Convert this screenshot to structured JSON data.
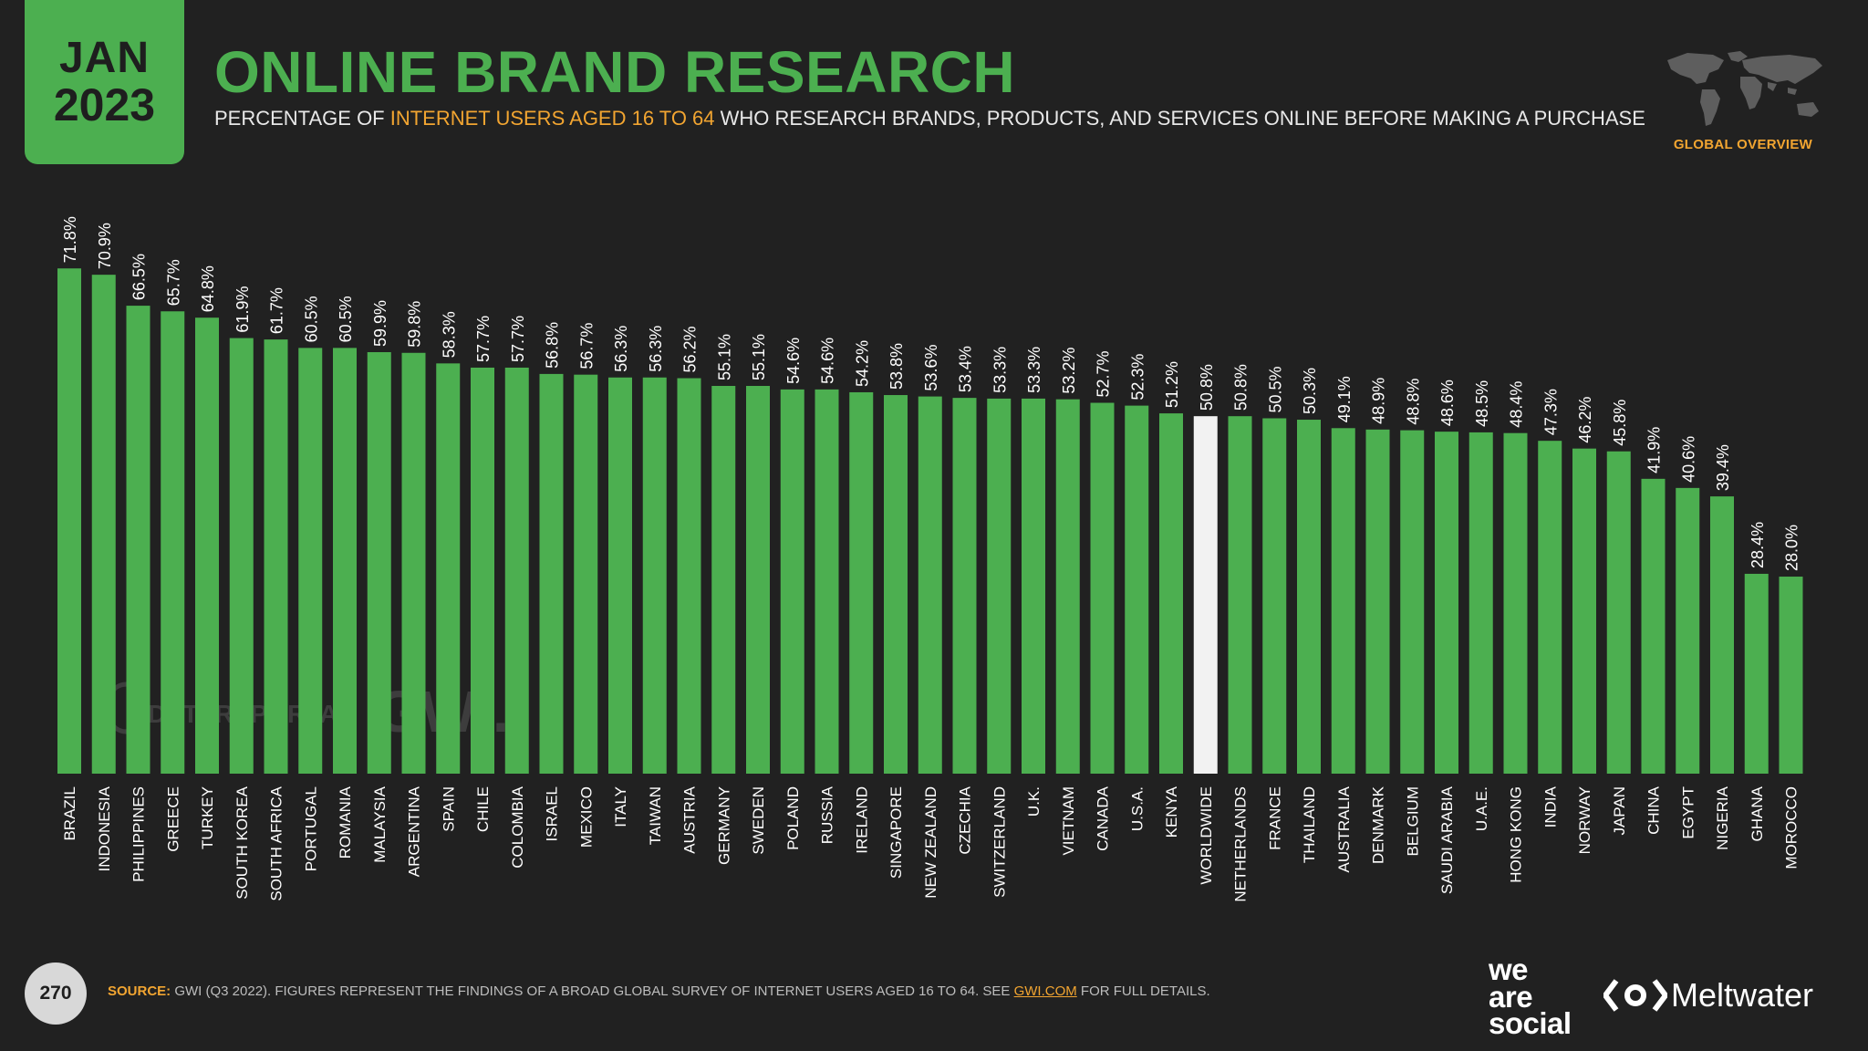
{
  "header": {
    "month": "JAN",
    "year": "2023",
    "title": "ONLINE BRAND RESEARCH",
    "subtitle_pre": "PERCENTAGE OF ",
    "subtitle_highlight": "INTERNET USERS AGED 16 TO 64",
    "subtitle_post": " WHO RESEARCH BRANDS, PRODUCTS, AND SERVICES ONLINE BEFORE MAKING A PURCHASE",
    "global_label": "GLOBAL OVERVIEW"
  },
  "watermark": {
    "left": "DATAREPORTAL",
    "right": "GWI."
  },
  "footer": {
    "page_number": "270",
    "source_label": "SOURCE:",
    "source_text": " GWI (Q3 2022). FIGURES REPRESENT THE FINDINGS OF A BROAD GLOBAL SURVEY OF INTERNET USERS AGED 16 TO 64. SEE ",
    "source_link": "GWI.COM",
    "source_tail": " FOR FULL DETAILS.",
    "brand1_line1": "we",
    "brand1_line2": "are",
    "brand1_line3": "social",
    "brand2": "Meltwater"
  },
  "colors": {
    "background": "#212121",
    "accent": "#4caf50",
    "highlight": "#f2a531",
    "worldwide_bar": "#f2f2f2"
  },
  "chart_data": {
    "type": "bar",
    "unit": "%",
    "ylim": [
      0,
      100
    ],
    "highlight_category": "WORLDWIDE",
    "categories": [
      "BRAZIL",
      "INDONESIA",
      "PHILIPPINES",
      "GREECE",
      "TURKEY",
      "SOUTH KOREA",
      "SOUTH AFRICA",
      "PORTUGAL",
      "ROMANIA",
      "MALAYSIA",
      "ARGENTINA",
      "SPAIN",
      "CHILE",
      "COLOMBIA",
      "ISRAEL",
      "MEXICO",
      "ITALY",
      "TAIWAN",
      "AUSTRIA",
      "GERMANY",
      "SWEDEN",
      "POLAND",
      "RUSSIA",
      "IRELAND",
      "SINGAPORE",
      "NEW ZEALAND",
      "CZECHIA",
      "SWITZERLAND",
      "U.K.",
      "VIETNAM",
      "CANADA",
      "U.S.A.",
      "KENYA",
      "WORLDWIDE",
      "NETHERLANDS",
      "FRANCE",
      "THAILAND",
      "AUSTRALIA",
      "DENMARK",
      "BELGIUM",
      "SAUDI ARABIA",
      "U.A.E.",
      "HONG KONG",
      "INDIA",
      "NORWAY",
      "JAPAN",
      "CHINA",
      "EGYPT",
      "NIGERIA",
      "GHANA",
      "MOROCCO"
    ],
    "values": [
      71.8,
      70.9,
      66.5,
      65.7,
      64.8,
      61.9,
      61.7,
      60.5,
      60.5,
      59.9,
      59.8,
      58.3,
      57.7,
      57.7,
      56.8,
      56.7,
      56.3,
      56.3,
      56.2,
      55.1,
      55.1,
      54.6,
      54.6,
      54.2,
      53.8,
      53.6,
      53.4,
      53.3,
      53.3,
      53.2,
      52.7,
      52.3,
      51.2,
      50.8,
      50.8,
      50.5,
      50.3,
      49.1,
      48.9,
      48.8,
      48.6,
      48.5,
      48.4,
      47.3,
      46.2,
      45.8,
      41.9,
      40.6,
      39.4,
      28.4,
      28.0
    ],
    "labels": [
      "71.8%",
      "70.9%",
      "66.5%",
      "65.7%",
      "64.8%",
      "61.9%",
      "61.7%",
      "60.5%",
      "60.5%",
      "59.9%",
      "59.8%",
      "58.3%",
      "57.7%",
      "57.7%",
      "56.8%",
      "56.7%",
      "56.3%",
      "56.3%",
      "56.2%",
      "55.1%",
      "55.1%",
      "54.6%",
      "54.6%",
      "54.2%",
      "53.8%",
      "53.6%",
      "53.4%",
      "53.3%",
      "53.3%",
      "53.2%",
      "52.7%",
      "52.3%",
      "51.2%",
      "50.8%",
      "50.8%",
      "50.5%",
      "50.3%",
      "49.1%",
      "48.9%",
      "48.8%",
      "48.6%",
      "48.5%",
      "48.4%",
      "47.3%",
      "46.2%",
      "45.8%",
      "41.9%",
      "40.6%",
      "39.4%",
      "28.4%",
      "28.0%"
    ]
  }
}
